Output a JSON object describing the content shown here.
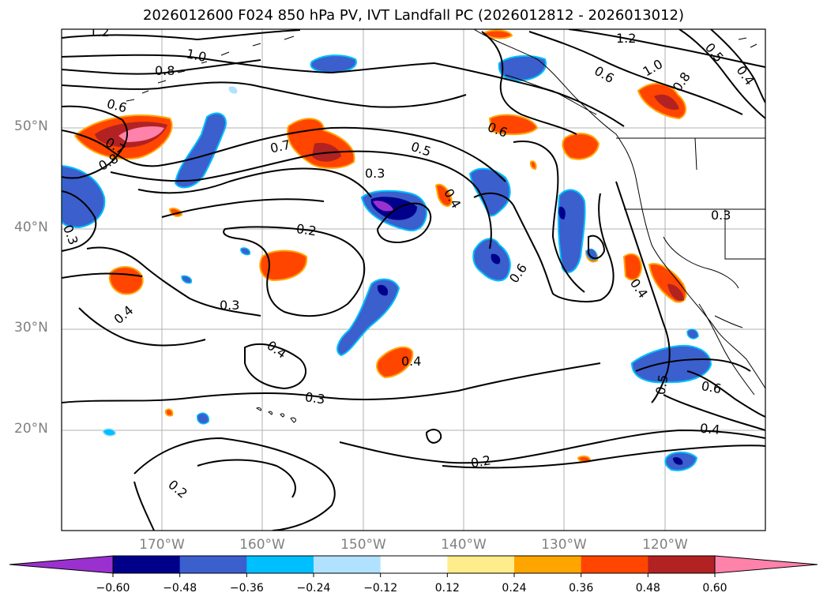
{
  "title": "2026012600 F024 850 hPa PV, IVT Landfall PC (2026012812 - 2026013012)",
  "lat_labels": [
    "50°N",
    "40°N",
    "30°N",
    "20°N"
  ],
  "lon_labels": [
    "170°W",
    "160°W",
    "150°W",
    "140°W",
    "130°W",
    "120°W"
  ],
  "contour_labels": [
    "1.2",
    "1.0",
    "0.8",
    "0.6",
    "0.7",
    "0.8",
    "1.2",
    "0.5",
    "0.4",
    "1.0",
    "0.8",
    "0.6",
    "0.7",
    "0.5",
    "0.3",
    "0.6",
    "0.4",
    "0.2",
    "0.3",
    "0.6",
    "0.4",
    "0.3",
    "0.4",
    "0.4",
    "0.4",
    "0.3",
    "0.5",
    "0.6",
    "0.4",
    "0.2",
    "0.2",
    "0.3"
  ],
  "colorbar": {
    "ticks": [
      "−0.60",
      "−0.48",
      "−0.36",
      "−0.24",
      "−0.12",
      "0.12",
      "0.24",
      "0.36",
      "0.48",
      "0.60"
    ],
    "colors": [
      "#9b30d0",
      "#00008b",
      "#3b5fcd",
      "#00bfff",
      "#b0e2ff",
      "#ffffff",
      "#ffec8b",
      "#ffa500",
      "#ff4500",
      "#b22222",
      "#ff82ab",
      "#ff82ab"
    ],
    "extend_low_color": "#9b30d0",
    "extend_high_color": "#ff82ab"
  },
  "colors": {
    "land_line": "#000000",
    "grid": "#b0b0b0",
    "contour": "#000000",
    "axis_label": "#808080"
  }
}
